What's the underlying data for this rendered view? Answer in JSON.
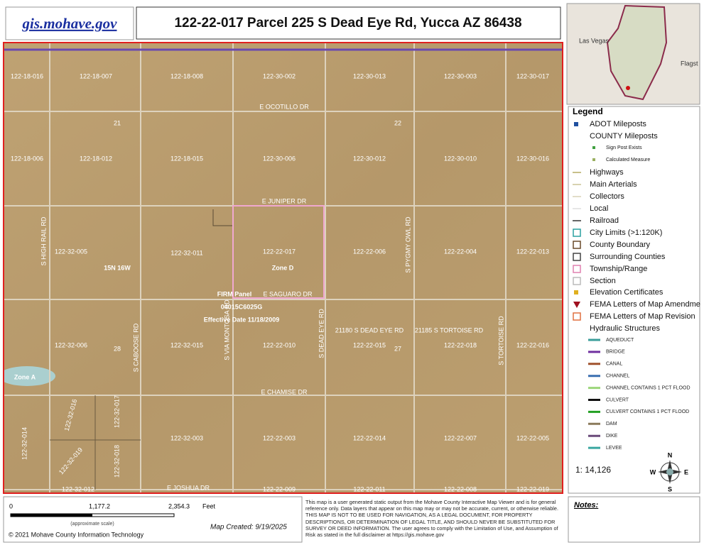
{
  "header": {
    "logo": "gis.mohave.gov",
    "title": "122-22-017 Parcel 225 S Dead Eye Rd, Yucca AZ 86438"
  },
  "inset": {
    "labels": [
      "Las Vegas",
      "Flagst"
    ]
  },
  "map": {
    "parcels": [
      "122-18-016",
      "122-18-007",
      "122-18-008",
      "122-30-002",
      "122-30-013",
      "122-30-003",
      "122-30-017",
      "122-18-006",
      "122-18-012",
      "122-18-015",
      "122-30-006",
      "122-30-012",
      "122-30-010",
      "122-30-016",
      "122-32-005",
      "122-32-011",
      "122-22-017",
      "122-22-006",
      "122-22-004",
      "122-22-013",
      "122-32-006",
      "122-32-015",
      "122-22-010",
      "122-22-015",
      "122-22-018",
      "122-22-016",
      "122-32-014",
      "122-32-016",
      "122-32-017",
      "122-32-019",
      "122-32-018",
      "122-32-003",
      "122-22-003",
      "122-22-014",
      "122-22-007",
      "122-22-005",
      "122-32-012",
      "122-22-009",
      "122-22-011",
      "122-22-008",
      "122-22-019"
    ],
    "roads": [
      "E OCOTILLO DR",
      "E JUNIPER DR",
      "E SAGUARO DR",
      "E CHAMISE DR",
      "E JOSHUA DR",
      "S HIGH RAIL RD",
      "S PYGMY OWL RD",
      "S CABOOSE RD",
      "S VIA MONTOSA RD",
      "S DEAD EYE RD",
      "S TORTOISE RD"
    ],
    "sections": [
      "21",
      "22",
      "28",
      "27"
    ],
    "township": "15N 16W",
    "zones": [
      "Zone D",
      "Zone A"
    ],
    "addresses": [
      "21180 S DEAD EYE RD",
      "21185 S TORTOISE RD"
    ],
    "firm": [
      "FIRM Panel",
      "04015C6025G",
      "Effective Date 11/18/2009"
    ]
  },
  "legend": {
    "title": "Legend",
    "items": [
      "ADOT Mileposts",
      "COUNTY Mileposts",
      "Sign Post Exists",
      "Calculated Measure",
      "Highways",
      "Main Arterials",
      "Collectors",
      "Local",
      "Railroad",
      "City Limits (>1:120K)",
      "County Boundary",
      "Surrounding Counties",
      "Township/Range",
      "Section",
      "Elevation Certificates",
      "FEMA Letters of Map Amendme",
      "FEMA Letters of Map Revision",
      "Hydraulic Structures"
    ],
    "hydraulic": [
      "AQUEDUCT",
      "BRIDGE",
      "CANAL",
      "CHANNEL",
      "CHANNEL CONTAINS 1 PCT FLOOD",
      "CULVERT",
      "CULVERT CONTAINS 1 PCT FLOOD",
      "DAM",
      "DIKE",
      "LEVEE"
    ],
    "scale": "1: 14,126",
    "compass": [
      "N",
      "S",
      "E",
      "W"
    ]
  },
  "footer": {
    "scale_labels": [
      "0",
      "1,177.2",
      "2,354.3",
      "Feet"
    ],
    "scale_note": "(approximate scale)",
    "copyright": "© 2021 Mohave County Information Technology",
    "created": "Map Created: 9/19/2025",
    "disclaimer": "This map is a user generated static output from the Mohave County Interactive Map Viewer and is for general reference only. Data layers that appear on this map may or may not be accurate, current, or otherwise reliable. THIS MAP IS NOT TO BE USED FOR NAVIGATION, AS A LEGAL DOCUMENT, FOR PROPERTY DESCRIPTIONS, OR DETERMINATION OF LEGAL TITLE, AND SHOULD NEVER BE SUBSTITUTED FOR SURVEY OR DEED INFORMATION. The user agrees to comply with the Limitation of Use, and Assumption of Risk as stated in the full disclaimer at https://gis.mohave.gov",
    "notes": "Notes:"
  }
}
